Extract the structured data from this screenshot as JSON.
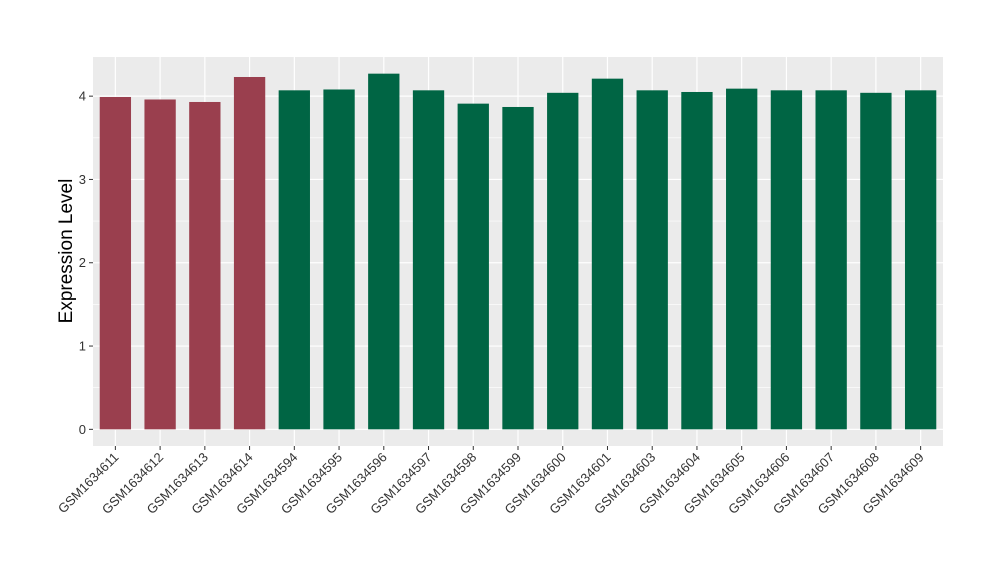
{
  "chart_data": {
    "type": "bar",
    "title": "",
    "xlabel": "",
    "ylabel": "Expression Level",
    "ylim": [
      -0.2,
      4.47
    ],
    "yticks": [
      0,
      1,
      2,
      3,
      4
    ],
    "grid": true,
    "legend": "none",
    "colors": {
      "group_a": "#9a3f4e",
      "group_b": "#006544",
      "panel_background": "#ebebeb",
      "grid": "#ffffff"
    },
    "categories": [
      "GSM1634611",
      "GSM1634612",
      "GSM1634613",
      "GSM1634614",
      "GSM1634594",
      "GSM1634595",
      "GSM1634596",
      "GSM1634597",
      "GSM1634598",
      "GSM1634599",
      "GSM1634600",
      "GSM1634601",
      "GSM1634603",
      "GSM1634604",
      "GSM1634605",
      "GSM1634606",
      "GSM1634607",
      "GSM1634608",
      "GSM1634609"
    ],
    "values": [
      3.99,
      3.96,
      3.93,
      4.23,
      4.07,
      4.08,
      4.27,
      4.07,
      3.91,
      3.87,
      4.04,
      4.21,
      4.07,
      4.05,
      4.09,
      4.07,
      4.07,
      4.04,
      4.07
    ],
    "groups": [
      "a",
      "a",
      "a",
      "a",
      "b",
      "b",
      "b",
      "b",
      "b",
      "b",
      "b",
      "b",
      "b",
      "b",
      "b",
      "b",
      "b",
      "b",
      "b"
    ]
  }
}
